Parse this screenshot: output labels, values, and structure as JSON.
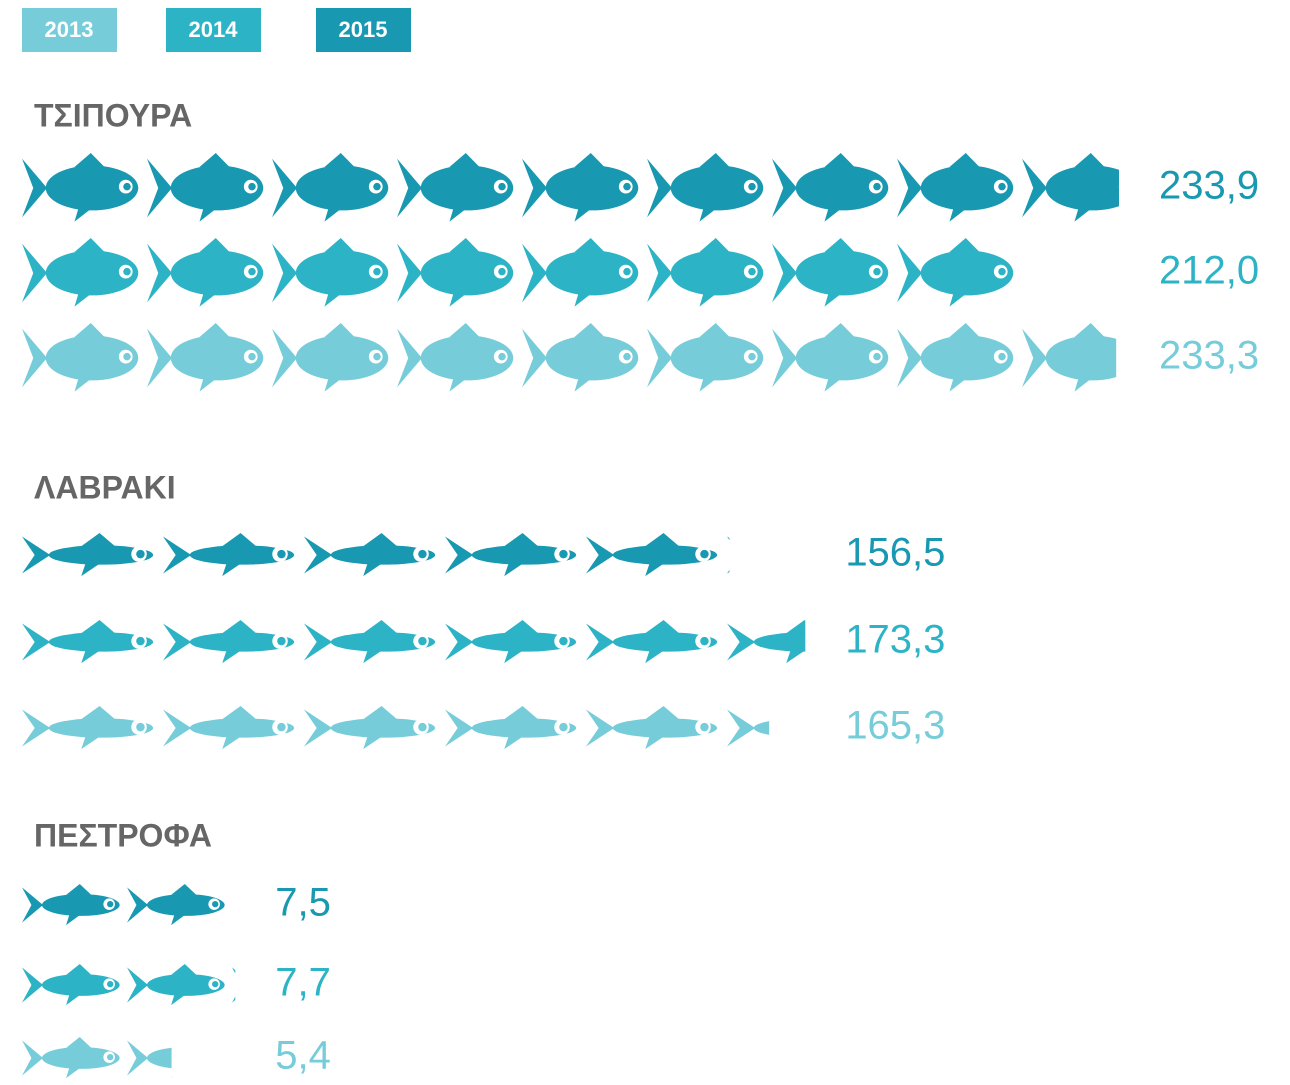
{
  "chart_data": {
    "type": "pictogram",
    "series": [
      {
        "name": "2013",
        "color": "#76cdd9"
      },
      {
        "name": "2014",
        "color": "#2db3c6"
      },
      {
        "name": "2015",
        "color": "#1898b1"
      }
    ],
    "groups": [
      {
        "label": "ΤΣΙΠΟΥΡΑ",
        "values": [
          233.3,
          212.0,
          233.9
        ],
        "value_labels": [
          "233,3",
          "212,0",
          "233,9"
        ]
      },
      {
        "label": "ΛΑΒΡΑΚΙ",
        "values": [
          165.3,
          173.3,
          156.5
        ],
        "value_labels": [
          "165,3",
          "173,3",
          "156,5"
        ]
      },
      {
        "label": "ΠΕΣΤΡΟΦΑ",
        "values": [
          5.4,
          7.7,
          7.5
        ],
        "value_labels": [
          "5,4",
          "7,7",
          "7,5"
        ]
      }
    ]
  }
}
